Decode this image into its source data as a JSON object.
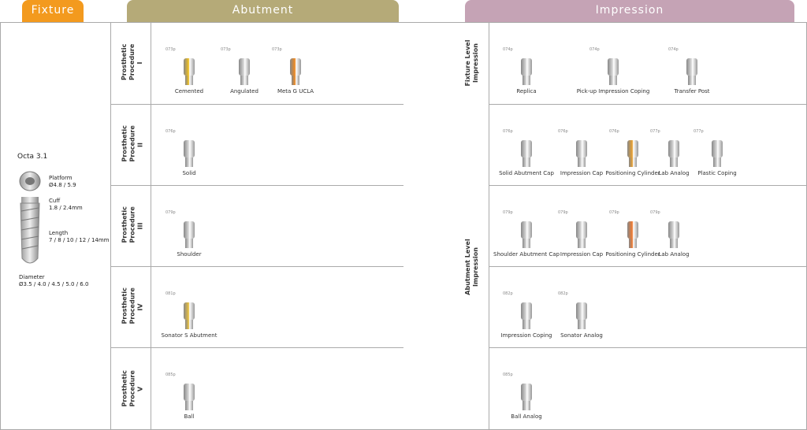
{
  "headers": {
    "fixture": "Fixture",
    "abutment": "Abutment",
    "impression": "Impression"
  },
  "fixture": {
    "name": "Octa 3.1",
    "platform_label": "Platform",
    "platform": "Ø4.8 / 5.9",
    "cuff_label": "Cuff",
    "cuff": "1.8 / 2.4mm",
    "length_label": "Length",
    "length": "7 / 8 / 10 / 12 / 14mm",
    "diameter_label": "Diameter",
    "diameter": "Ø3.5 / 4.0 / 4.5 / 5.0 / 6.0"
  },
  "procedures": [
    {
      "label": "Prosthetic Procedure I",
      "items": [
        {
          "page": "073p",
          "name": "Cemented"
        },
        {
          "page": "073p",
          "name": "Angulated"
        },
        {
          "page": "073p",
          "name": "Meta G UCLA"
        }
      ]
    },
    {
      "label": "Prosthetic Procedure II",
      "items": [
        {
          "page": "076p",
          "name": "Solid"
        }
      ]
    },
    {
      "label": "Prosthetic Procedure III",
      "items": [
        {
          "page": "079p",
          "name": "Shoulder"
        }
      ]
    },
    {
      "label": "Prosthetic Procedure IV",
      "items": [
        {
          "page": "081p",
          "name": "Sonator S Abutment"
        }
      ]
    },
    {
      "label": "Prosthetic Procedure V",
      "items": [
        {
          "page": "085p",
          "name": "Ball"
        }
      ]
    }
  ],
  "impression_groups": [
    {
      "label": "Fixture Level Impression",
      "rows": [
        [
          {
            "page": "074p",
            "name": "Replica"
          },
          {
            "page": "074p",
            "name": "Pick-up Impression Coping"
          },
          {
            "page": "074p",
            "name": "Transfer Post"
          }
        ]
      ]
    },
    {
      "label": "Abutment Level Impression",
      "rows": [
        [
          {
            "page": "076p",
            "name": "Solid Abutment Cap"
          },
          {
            "page": "076p",
            "name": "Impression Cap"
          },
          {
            "page": "076p",
            "name": "Positioning Cylinder"
          },
          {
            "page": "077p",
            "name": "Lab Analog"
          },
          {
            "page": "077p",
            "name": "Plastic Coping"
          }
        ],
        [
          {
            "page": "079p",
            "name": "Shoulder Abutment Cap"
          },
          {
            "page": "079p",
            "name": "Impression Cap"
          },
          {
            "page": "079p",
            "name": "Positioning Cylinder"
          },
          {
            "page": "079p",
            "name": "Lab Analog"
          }
        ],
        [
          {
            "page": "082p",
            "name": "Impression Coping"
          },
          {
            "page": "082p",
            "name": "Sonator Analog"
          }
        ],
        [
          {
            "page": "085p",
            "name": "Ball Analog"
          }
        ]
      ]
    }
  ]
}
